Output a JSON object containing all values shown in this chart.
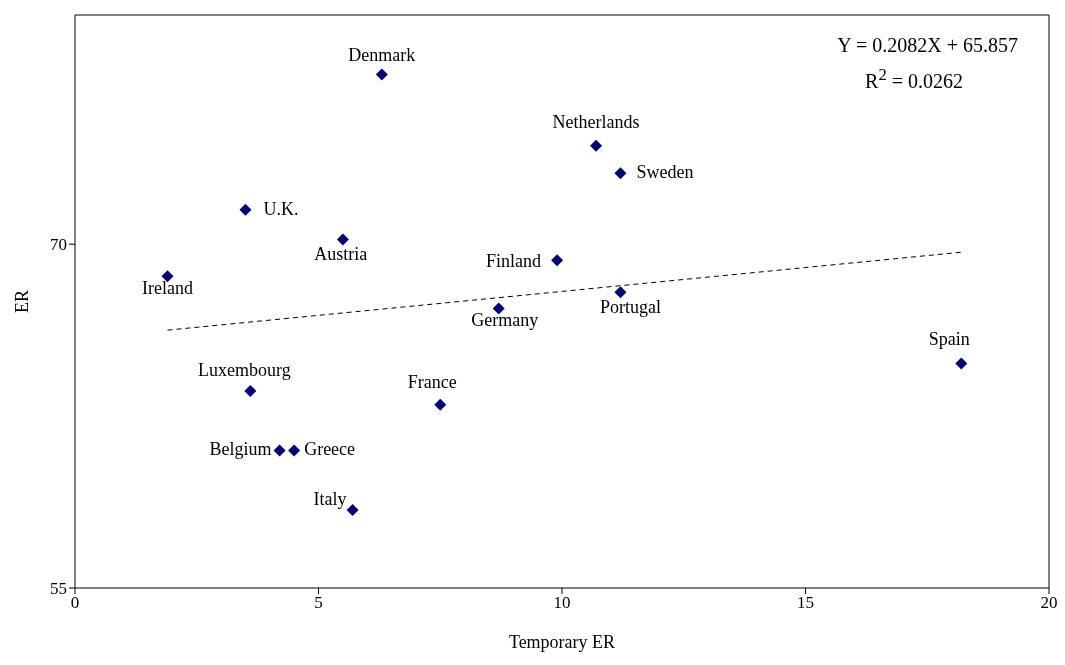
{
  "chart_data": {
    "type": "scatter",
    "xlabel": "Temporary ER",
    "ylabel": "ER",
    "xlim": [
      0,
      20
    ],
    "xticks": [
      0,
      5,
      10,
      15,
      20
    ],
    "ylim": [
      55,
      80
    ],
    "yticks": [
      55,
      70
    ],
    "grid": false,
    "legend": false,
    "marker": "diamond",
    "series": [
      {
        "color": "#000080",
        "x": [
          6.3,
          10.7,
          11.2,
          3.5,
          5.5,
          1.9,
          9.9,
          8.7,
          11.2,
          18.2,
          3.6,
          7.5,
          4.2,
          4.5,
          5.7
        ],
        "values": [
          77.4,
          74.3,
          73.1,
          71.5,
          70.2,
          68.6,
          69.3,
          67.2,
          67.9,
          64.8,
          63.6,
          63.0,
          61.0,
          61.0,
          58.4
        ]
      },
      {
        "type": "line",
        "color": "#000000",
        "line_style": "dashed",
        "marker": "none",
        "x": [
          1.9,
          18.2
        ],
        "values": [
          66.25,
          69.65
        ]
      }
    ],
    "annotations": [
      {
        "text": "Denmark",
        "x": 6.3,
        "y": 77.4
      },
      {
        "text": "Netherlands",
        "x": 10.7,
        "y": 74.3
      },
      {
        "text": "Sweden",
        "x": 11.2,
        "y": 73.1
      },
      {
        "text": "U.K.",
        "x": 3.5,
        "y": 71.5
      },
      {
        "text": "Austria",
        "x": 5.5,
        "y": 70.2
      },
      {
        "text": "Ireland",
        "x": 1.9,
        "y": 68.6
      },
      {
        "text": "Finland",
        "x": 9.9,
        "y": 69.3
      },
      {
        "text": "Germany",
        "x": 8.7,
        "y": 67.2
      },
      {
        "text": "Portugal",
        "x": 11.2,
        "y": 67.9
      },
      {
        "text": "Spain",
        "x": 18.2,
        "y": 64.8
      },
      {
        "text": "Luxembourg",
        "x": 3.6,
        "y": 63.6
      },
      {
        "text": "France",
        "x": 7.5,
        "y": 63.0
      },
      {
        "text": "Belgium",
        "x": 4.2,
        "y": 61.0
      },
      {
        "text": "Greece",
        "x": 4.5,
        "y": 61.0
      },
      {
        "text": "Italy",
        "x": 5.7,
        "y": 58.4
      },
      "Y = 0.2082X + 65.857",
      "R$^{2}$ = 0.0262"
    ]
  }
}
